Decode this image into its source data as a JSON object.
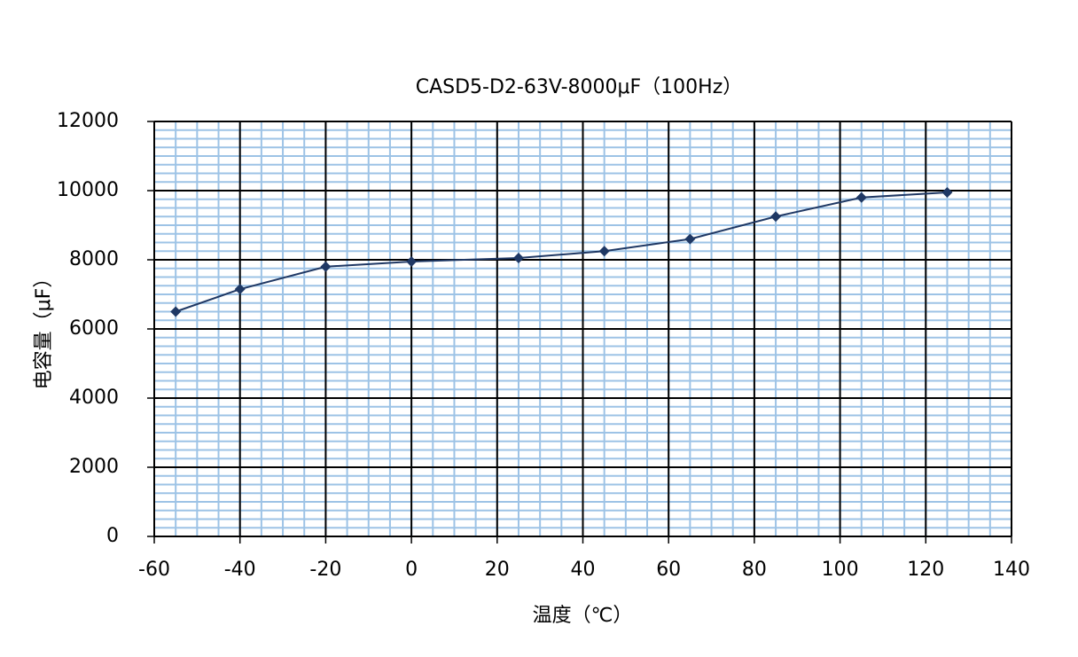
{
  "chart_data": {
    "type": "line",
    "title": "CASD5-D2-63V-8000μF（100Hz）",
    "x_label": "温度（℃）",
    "y_label": "电容量（μF）",
    "x": [
      -55,
      -40,
      -20,
      0,
      25,
      45,
      65,
      85,
      105,
      125
    ],
    "series": [
      {
        "name": "CASD5-D2-63V-8000μF",
        "color": "#1f3864",
        "values": [
          6500,
          7150,
          7800,
          7950,
          8050,
          8250,
          8600,
          9250,
          9800,
          9950
        ]
      }
    ],
    "xlim": [
      -60,
      140
    ],
    "xticks": [
      -60,
      -40,
      -20,
      0,
      20,
      40,
      60,
      80,
      100,
      120,
      140
    ],
    "ylim": [
      0,
      12000
    ],
    "yticks": [
      0,
      2000,
      4000,
      6000,
      8000,
      10000,
      12000
    ],
    "grid": true,
    "grid_color": "#000000",
    "minor_grid": {
      "x_step": 5,
      "y_step": 250,
      "color": "#9dc3e6"
    },
    "marker": "diamond"
  }
}
